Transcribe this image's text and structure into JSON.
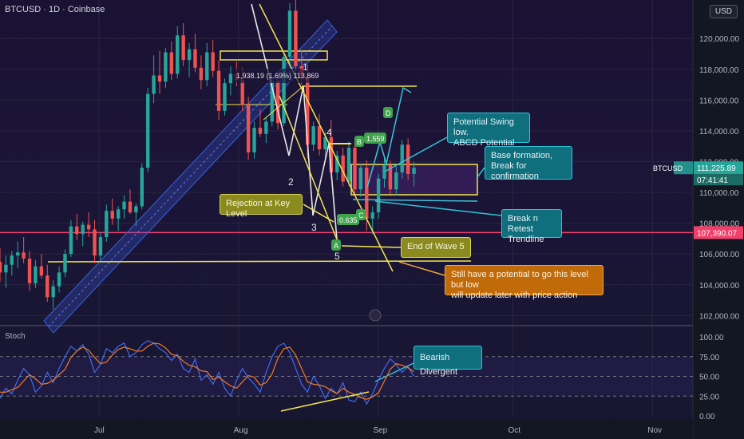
{
  "header": {
    "symbol_line": "BTCUSD · 1D · Coinbase",
    "currency": "USD"
  },
  "colors": {
    "up": "#26a69a",
    "down": "#ef5350",
    "accent_yellow": "#f2e64e",
    "trend_blue": "#3a5fe0",
    "key_level": "#f23f6b",
    "teal_callout": "#0f6f7d"
  },
  "chart_data": {
    "type": "candlestick",
    "symbol": "BTCUSD",
    "interval": "1D",
    "exchange": "Coinbase",
    "y_range": [
      101500,
      122500
    ],
    "y_ticks": [
      102000,
      104000,
      106000,
      108000,
      110000,
      112000,
      114000,
      116000,
      118000,
      120000
    ],
    "y_tick_labels": [
      "102,000.00",
      "104,000.00",
      "106,000.00",
      "108,000.00",
      "110,000.00",
      "112,000.00",
      "114,000.00",
      "116,000.00",
      "118,000.00",
      "120,000.00"
    ],
    "x_labels": [
      {
        "text": "Jul",
        "date": "2025-07-01"
      },
      {
        "text": "Aug",
        "date": "2025-08-01"
      },
      {
        "text": "Sep",
        "date": "2025-09-01"
      },
      {
        "text": "Oct",
        "date": "2025-10-01"
      },
      {
        "text": "Nov",
        "date": "2025-11-01"
      }
    ],
    "start_date": "2025-06-09",
    "end_date": "2025-11-10",
    "candles": [
      [
        105500,
        106400,
        104200,
        104800
      ],
      [
        104800,
        105900,
        103800,
        105300
      ],
      [
        105300,
        106200,
        104600,
        105900
      ],
      [
        105900,
        106800,
        105100,
        106100
      ],
      [
        106100,
        107100,
        105400,
        105700
      ],
      [
        105700,
        106200,
        103600,
        104100
      ],
      [
        104100,
        105600,
        103800,
        105200
      ],
      [
        105200,
        106000,
        104400,
        104600
      ],
      [
        104600,
        105300,
        102900,
        103200
      ],
      [
        103200,
        104300,
        102400,
        103900
      ],
      [
        103900,
        105200,
        103500,
        104800
      ],
      [
        104800,
        106300,
        104500,
        106000
      ],
      [
        106000,
        108200,
        105800,
        107800
      ],
      [
        107800,
        108600,
        106900,
        107300
      ],
      [
        107300,
        108100,
        106500,
        107900
      ],
      [
        107900,
        108700,
        107100,
        107600
      ],
      [
        107600,
        108200,
        105400,
        105900
      ],
      [
        105900,
        107400,
        105600,
        107100
      ],
      [
        107100,
        109200,
        106800,
        108800
      ],
      [
        108800,
        109600,
        107900,
        108300
      ],
      [
        108300,
        109100,
        107500,
        108900
      ],
      [
        108900,
        109800,
        108300,
        109400
      ],
      [
        109400,
        110200,
        108600,
        108700
      ],
      [
        108700,
        109300,
        107800,
        109100
      ],
      [
        109100,
        111900,
        108900,
        111600
      ],
      [
        111600,
        116800,
        111300,
        116400
      ],
      [
        116400,
        118900,
        115800,
        117600
      ],
      [
        117600,
        119200,
        116400,
        117200
      ],
      [
        117200,
        119400,
        116800,
        119100
      ],
      [
        119100,
        119800,
        117300,
        117700
      ],
      [
        117700,
        120800,
        117400,
        120200
      ],
      [
        120200,
        121000,
        118200,
        118600
      ],
      [
        118600,
        119700,
        117500,
        119300
      ],
      [
        119300,
        120300,
        117800,
        118100
      ],
      [
        118100,
        118900,
        116700,
        117300
      ],
      [
        117300,
        119700,
        116900,
        119100
      ],
      [
        119100,
        119900,
        117500,
        117900
      ],
      [
        117900,
        118600,
        114700,
        115300
      ],
      [
        115300,
        117400,
        115000,
        117100
      ],
      [
        117100,
        118200,
        116300,
        117700
      ],
      [
        117700,
        118500,
        116900,
        117300
      ],
      [
        117300,
        118100,
        115300,
        115700
      ],
      [
        115700,
        116200,
        112100,
        112600
      ],
      [
        112600,
        114600,
        112200,
        114200
      ],
      [
        114200,
        115400,
        113600,
        113800
      ],
      [
        113800,
        114900,
        113200,
        114600
      ],
      [
        114600,
        117400,
        114300,
        117200
      ],
      [
        117200,
        117700,
        114100,
        114500
      ],
      [
        114500,
        119200,
        114300,
        118800
      ],
      [
        118800,
        122300,
        118300,
        121800
      ],
      [
        121800,
        123200,
        117800,
        118200
      ],
      [
        118200,
        119200,
        117000,
        117500
      ],
      [
        117500,
        118300,
        112200,
        113100
      ],
      [
        113100,
        114600,
        112700,
        114300
      ],
      [
        114300,
        115100,
        112400,
        112800
      ],
      [
        112800,
        113900,
        112000,
        113600
      ],
      [
        113600,
        114700,
        110900,
        111300
      ],
      [
        111300,
        112700,
        110800,
        112400
      ],
      [
        112400,
        112900,
        110400,
        110700
      ],
      [
        110700,
        113300,
        110400,
        112900
      ],
      [
        112900,
        113300,
        109800,
        110200
      ],
      [
        110200,
        111900,
        109700,
        111600
      ],
      [
        111600,
        112100,
        107500,
        108300
      ],
      [
        108300,
        109100,
        107300,
        108700
      ],
      [
        108700,
        111200,
        108300,
        110900
      ],
      [
        110900,
        112400,
        110300,
        111800
      ],
      [
        111800,
        112100,
        109900,
        110200
      ],
      [
        110200,
        111700,
        109800,
        111300
      ],
      [
        111300,
        113400,
        110900,
        113100
      ],
      [
        113100,
        113500,
        110800,
        111200
      ],
      [
        111200,
        112000,
        110400,
        111600
      ]
    ],
    "stoch_range": [
      0,
      100
    ],
    "stoch_ticks": [
      0,
      25,
      50,
      75,
      100
    ],
    "stoch_tick_labels": [
      "0.00",
      "25.00",
      "50.00",
      "75.00",
      "100.00"
    ],
    "stoch_k": [
      22,
      35,
      28,
      45,
      60,
      52,
      30,
      38,
      55,
      42,
      60,
      75,
      88,
      82,
      90,
      78,
      55,
      65,
      85,
      80,
      88,
      92,
      75,
      80,
      90,
      95,
      92,
      85,
      80,
      70,
      78,
      60,
      55,
      72,
      45,
      52,
      40,
      55,
      35,
      25,
      45,
      60,
      48,
      40,
      30,
      55,
      75,
      88,
      92,
      80,
      60,
      40,
      30,
      50,
      38,
      22,
      35,
      28,
      42,
      20,
      18,
      30,
      15,
      28,
      45,
      60,
      72,
      65,
      55,
      62,
      50
    ],
    "stoch_d": [
      30,
      30,
      33,
      36,
      44,
      52,
      47,
      40,
      41,
      45,
      52,
      59,
      74,
      82,
      87,
      83,
      74,
      66,
      68,
      77,
      84,
      87,
      85,
      82,
      82,
      88,
      92,
      91,
      86,
      78,
      76,
      69,
      64,
      62,
      57,
      56,
      46,
      49,
      43,
      38,
      35,
      43,
      51,
      49,
      39,
      42,
      53,
      73,
      85,
      87,
      77,
      60,
      43,
      40,
      39,
      37,
      32,
      28,
      35,
      30,
      27,
      23,
      21,
      24,
      29,
      44,
      59,
      66,
      64,
      61,
      56
    ],
    "annotations": {
      "price_tag": "111,225.89",
      "countdown": "07:41:41",
      "key_level": "107,390.07",
      "key_level_value": 107390,
      "symbol_tag": "BTCUSD",
      "measure": "1,938.19 (1.69%) 113,869",
      "fib1": "0.635",
      "fib2": "1.559",
      "waves": [
        "1",
        "2",
        "3",
        "4",
        "5"
      ],
      "letters": [
        "A",
        "B",
        "C",
        "D"
      ],
      "callouts": {
        "swing_low": "Potential Swing low.\nABCD Potential",
        "base": "Base formation,\nBreak for confirmation",
        "retest": "Break n Retest\nTrendline",
        "rejection": "Rejection at Key Level",
        "wave5": "End of Wave 5",
        "potential": "Still have a potential to go this level but low\nwill update later with price action",
        "divergent": "Bearish Divergent"
      }
    },
    "stoch_label": "Stoch"
  }
}
